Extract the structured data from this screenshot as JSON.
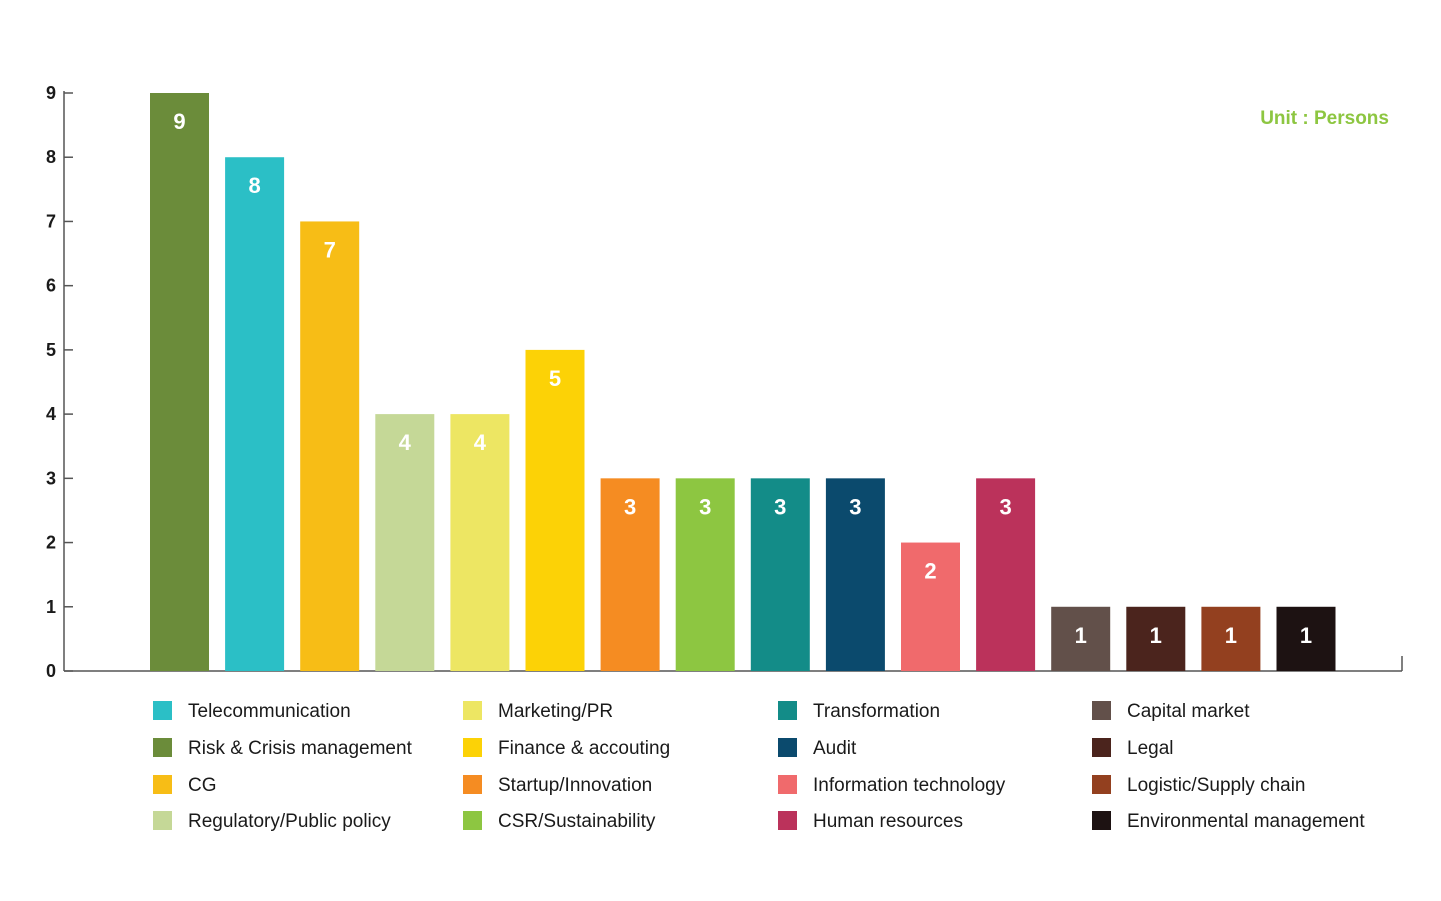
{
  "chart_data": {
    "type": "bar",
    "title": "",
    "xlabel": "",
    "ylabel": "",
    "unit_label": "Unit : Persons",
    "ylim": [
      0,
      9
    ],
    "yticks": [
      0,
      1,
      2,
      3,
      4,
      5,
      6,
      7,
      8,
      9
    ],
    "bars": [
      {
        "category": "Risk & Crisis management",
        "value": 9,
        "color": "#6b8c3a"
      },
      {
        "category": "Telecommunication",
        "value": 8,
        "color": "#2bbfc6"
      },
      {
        "category": "CG",
        "value": 7,
        "color": "#f7bd16"
      },
      {
        "category": "Regulatory/Public policy",
        "value": 4,
        "color": "#c5d897"
      },
      {
        "category": "Marketing/PR",
        "value": 4,
        "color": "#ede663"
      },
      {
        "category": "Finance & accouting",
        "value": 5,
        "color": "#fcd206"
      },
      {
        "category": "Startup/Innovation",
        "value": 3,
        "color": "#f58c22"
      },
      {
        "category": "CSR/Sustainability",
        "value": 3,
        "color": "#8dc641"
      },
      {
        "category": "Transformation",
        "value": 3,
        "color": "#138c88"
      },
      {
        "category": "Audit",
        "value": 3,
        "color": "#0b4a6d"
      },
      {
        "category": "Information technology",
        "value": 2,
        "color": "#f06a6c"
      },
      {
        "category": "Human resources",
        "value": 3,
        "color": "#bb325b"
      },
      {
        "category": "Capital market",
        "value": 1,
        "color": "#62504a"
      },
      {
        "category": "Legal",
        "value": 1,
        "color": "#4b241d"
      },
      {
        "category": "Logistic/Supply chain",
        "value": 1,
        "color": "#93401f"
      },
      {
        "category": "Environmental management",
        "value": 1,
        "color": "#1d1212"
      }
    ],
    "legend": {
      "placement": "bottom",
      "columns": [
        [
          "Telecommunication",
          "Risk & Crisis management",
          "CG",
          "Regulatory/Public policy"
        ],
        [
          "Marketing/PR",
          "Finance & accouting",
          "Startup/Innovation",
          "CSR/Sustainability"
        ],
        [
          "Transformation",
          "Audit",
          "Information technology",
          "Human resources"
        ],
        [
          "Capital market",
          "Legal",
          "Logistic/Supply chain",
          "Environmental management"
        ]
      ]
    },
    "colors": {
      "axis": "#555555",
      "tick_text": "#1a1a1a",
      "unit_label": "#8dc641",
      "bar_label": "#ffffff"
    }
  }
}
